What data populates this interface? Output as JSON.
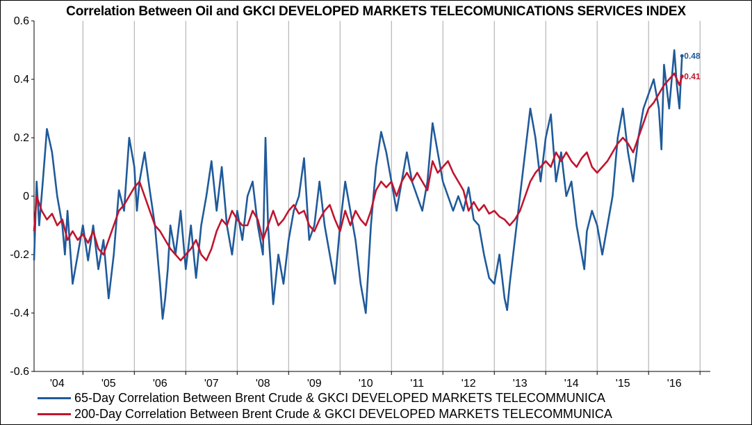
{
  "chart_data": {
    "type": "line",
    "title": "Correlation Between Oil and GKCI DEVELOPED MARKETS TELECOMUNICATIONS SERVICES INDEX",
    "xlabel": "",
    "ylabel": "",
    "ylim": [
      -0.6,
      0.6
    ],
    "yticks": [
      "0.6",
      "0.4",
      "0.2",
      "0",
      "-0.2",
      "-0.4",
      "-0.6"
    ],
    "xticks": [
      "'04",
      "'05",
      "'06",
      "'07",
      "'08",
      "'09",
      "'10",
      "'11",
      "'12",
      "'13",
      "'14",
      "'15",
      "'16"
    ],
    "xlim": [
      2003.55,
      2016.7
    ],
    "grid": "vertical",
    "legend": "bottom",
    "series": [
      {
        "name": "65-Day Correlation Between Brent Crude & GKCI DEVELOPED MARKETS TELECOMMUNICA",
        "color": "#1f5a9a",
        "end_label": "0.48",
        "x": [
          2003.55,
          2003.6,
          2003.65,
          2003.72,
          2003.8,
          2003.9,
          2004.0,
          2004.1,
          2004.15,
          2004.2,
          2004.3,
          2004.4,
          2004.5,
          2004.6,
          2004.7,
          2004.8,
          2004.9,
          2005.0,
          2005.1,
          2005.2,
          2005.3,
          2005.4,
          2005.5,
          2005.55,
          2005.6,
          2005.7,
          2005.8,
          2005.9,
          2006.0,
          2006.05,
          2006.1,
          2006.15,
          2006.2,
          2006.3,
          2006.4,
          2006.5,
          2006.6,
          2006.7,
          2006.8,
          2006.9,
          2007.0,
          2007.1,
          2007.2,
          2007.3,
          2007.4,
          2007.5,
          2007.6,
          2007.7,
          2007.8,
          2007.9,
          2008.0,
          2008.05,
          2008.1,
          2008.2,
          2008.3,
          2008.4,
          2008.5,
          2008.6,
          2008.7,
          2008.8,
          2008.9,
          2009.0,
          2009.1,
          2009.2,
          2009.3,
          2009.4,
          2009.5,
          2009.6,
          2009.7,
          2009.8,
          2009.9,
          2010.0,
          2010.1,
          2010.2,
          2010.3,
          2010.4,
          2010.5,
          2010.6,
          2010.7,
          2010.8,
          2010.9,
          2011.0,
          2011.1,
          2011.2,
          2011.3,
          2011.4,
          2011.5,
          2011.6,
          2011.7,
          2011.8,
          2011.9,
          2012.0,
          2012.1,
          2012.2,
          2012.3,
          2012.4,
          2012.5,
          2012.6,
          2012.7,
          2012.75,
          2012.8,
          2012.9,
          2013.0,
          2013.1,
          2013.2,
          2013.3,
          2013.4,
          2013.5,
          2013.6,
          2013.7,
          2013.8,
          2013.9,
          2014.0,
          2014.1,
          2014.2,
          2014.25,
          2014.3,
          2014.4,
          2014.5,
          2014.6,
          2014.7,
          2014.8,
          2014.9,
          2015.0,
          2015.1,
          2015.2,
          2015.3,
          2015.4,
          2015.5,
          2015.6,
          2015.7,
          2015.75,
          2015.8,
          2015.9,
          2016.0,
          2016.05,
          2016.1,
          2016.15
        ],
        "y": [
          -0.22,
          0.05,
          -0.1,
          0.05,
          0.23,
          0.15,
          0.0,
          -0.1,
          -0.2,
          -0.05,
          -0.3,
          -0.2,
          -0.1,
          -0.22,
          -0.1,
          -0.25,
          -0.15,
          -0.35,
          -0.2,
          0.02,
          -0.05,
          0.2,
          0.1,
          -0.05,
          0.05,
          0.15,
          0.02,
          -0.1,
          -0.3,
          -0.42,
          -0.35,
          -0.25,
          -0.1,
          -0.2,
          -0.05,
          -0.25,
          -0.1,
          -0.28,
          -0.1,
          0.0,
          0.12,
          -0.05,
          0.1,
          -0.1,
          -0.2,
          -0.05,
          -0.15,
          0.0,
          0.05,
          -0.1,
          -0.2,
          0.2,
          -0.1,
          -0.37,
          -0.2,
          -0.3,
          -0.15,
          -0.05,
          0.0,
          0.13,
          -0.15,
          -0.1,
          0.05,
          -0.1,
          -0.2,
          -0.3,
          -0.1,
          0.05,
          -0.05,
          -0.15,
          -0.3,
          -0.4,
          -0.1,
          0.1,
          0.22,
          0.15,
          0.05,
          -0.05,
          0.05,
          0.15,
          0.05,
          0.0,
          -0.05,
          0.05,
          0.25,
          0.15,
          0.05,
          0.0,
          -0.05,
          0.0,
          -0.05,
          0.03,
          -0.08,
          -0.1,
          -0.2,
          -0.28,
          -0.3,
          -0.2,
          -0.35,
          -0.39,
          -0.3,
          -0.15,
          0.0,
          0.15,
          0.3,
          0.2,
          0.05,
          0.2,
          0.28,
          0.05,
          0.15,
          0.0,
          0.05,
          -0.1,
          -0.2,
          -0.25,
          -0.12,
          -0.05,
          -0.1,
          -0.2,
          -0.1,
          0.0,
          0.2,
          0.3,
          0.15,
          0.05,
          0.2,
          0.3,
          0.35,
          0.4,
          0.3,
          0.16,
          0.45,
          0.3,
          0.5,
          0.38,
          0.3,
          0.48
        ]
      },
      {
        "name": "200-Day Correlation Between Brent Crude & GKCI DEVELOPED MARKETS TELECOMMUNICA",
        "color": "#c0142d",
        "end_label": "0.41",
        "x": [
          2003.55,
          2003.6,
          2003.7,
          2003.8,
          2003.9,
          2004.0,
          2004.1,
          2004.2,
          2004.3,
          2004.4,
          2004.5,
          2004.6,
          2004.7,
          2004.8,
          2004.9,
          2005.0,
          2005.1,
          2005.2,
          2005.3,
          2005.4,
          2005.5,
          2005.6,
          2005.7,
          2005.8,
          2005.9,
          2006.0,
          2006.1,
          2006.2,
          2006.3,
          2006.4,
          2006.5,
          2006.6,
          2006.7,
          2006.8,
          2006.9,
          2007.0,
          2007.1,
          2007.2,
          2007.3,
          2007.4,
          2007.5,
          2007.6,
          2007.7,
          2007.8,
          2007.9,
          2008.0,
          2008.1,
          2008.2,
          2008.3,
          2008.4,
          2008.5,
          2008.6,
          2008.7,
          2008.8,
          2008.9,
          2009.0,
          2009.1,
          2009.2,
          2009.3,
          2009.4,
          2009.5,
          2009.6,
          2009.7,
          2009.8,
          2009.9,
          2010.0,
          2010.1,
          2010.2,
          2010.3,
          2010.4,
          2010.5,
          2010.6,
          2010.7,
          2010.8,
          2010.9,
          2011.0,
          2011.1,
          2011.2,
          2011.3,
          2011.4,
          2011.5,
          2011.6,
          2011.7,
          2011.8,
          2011.9,
          2012.0,
          2012.1,
          2012.2,
          2012.3,
          2012.4,
          2012.5,
          2012.6,
          2012.7,
          2012.8,
          2012.9,
          2013.0,
          2013.1,
          2013.2,
          2013.3,
          2013.4,
          2013.5,
          2013.6,
          2013.7,
          2013.8,
          2013.9,
          2014.0,
          2014.1,
          2014.2,
          2014.3,
          2014.4,
          2014.5,
          2014.6,
          2014.7,
          2014.8,
          2014.9,
          2015.0,
          2015.1,
          2015.2,
          2015.3,
          2015.4,
          2015.5,
          2015.6,
          2015.7,
          2015.8,
          2015.9,
          2016.0,
          2016.1,
          2016.15
        ],
        "y": [
          -0.12,
          0.0,
          -0.05,
          -0.08,
          -0.06,
          -0.1,
          -0.08,
          -0.15,
          -0.12,
          -0.15,
          -0.13,
          -0.16,
          -0.12,
          -0.18,
          -0.2,
          -0.15,
          -0.1,
          -0.05,
          -0.03,
          0.0,
          0.03,
          0.05,
          0.0,
          -0.05,
          -0.1,
          -0.12,
          -0.15,
          -0.18,
          -0.2,
          -0.22,
          -0.2,
          -0.18,
          -0.15,
          -0.2,
          -0.22,
          -0.18,
          -0.12,
          -0.08,
          -0.1,
          -0.05,
          -0.08,
          -0.1,
          -0.1,
          -0.05,
          -0.08,
          -0.15,
          -0.1,
          -0.05,
          -0.1,
          -0.08,
          -0.05,
          -0.03,
          -0.06,
          -0.05,
          -0.1,
          -0.12,
          -0.08,
          -0.05,
          -0.03,
          -0.08,
          -0.12,
          -0.05,
          -0.1,
          -0.05,
          -0.08,
          -0.1,
          -0.05,
          0.02,
          0.05,
          0.03,
          0.05,
          0.0,
          0.05,
          0.08,
          0.05,
          0.08,
          0.05,
          0.02,
          0.12,
          0.08,
          0.1,
          0.12,
          0.08,
          0.05,
          0.02,
          -0.05,
          -0.02,
          -0.05,
          -0.03,
          -0.06,
          -0.05,
          -0.07,
          -0.08,
          -0.1,
          -0.08,
          -0.05,
          0.0,
          0.05,
          0.08,
          0.1,
          0.12,
          0.1,
          0.15,
          0.12,
          0.15,
          0.12,
          0.1,
          0.13,
          0.15,
          0.1,
          0.08,
          0.1,
          0.12,
          0.15,
          0.18,
          0.2,
          0.18,
          0.15,
          0.2,
          0.25,
          0.3,
          0.32,
          0.35,
          0.38,
          0.4,
          0.42,
          0.38,
          0.41
        ]
      }
    ]
  }
}
